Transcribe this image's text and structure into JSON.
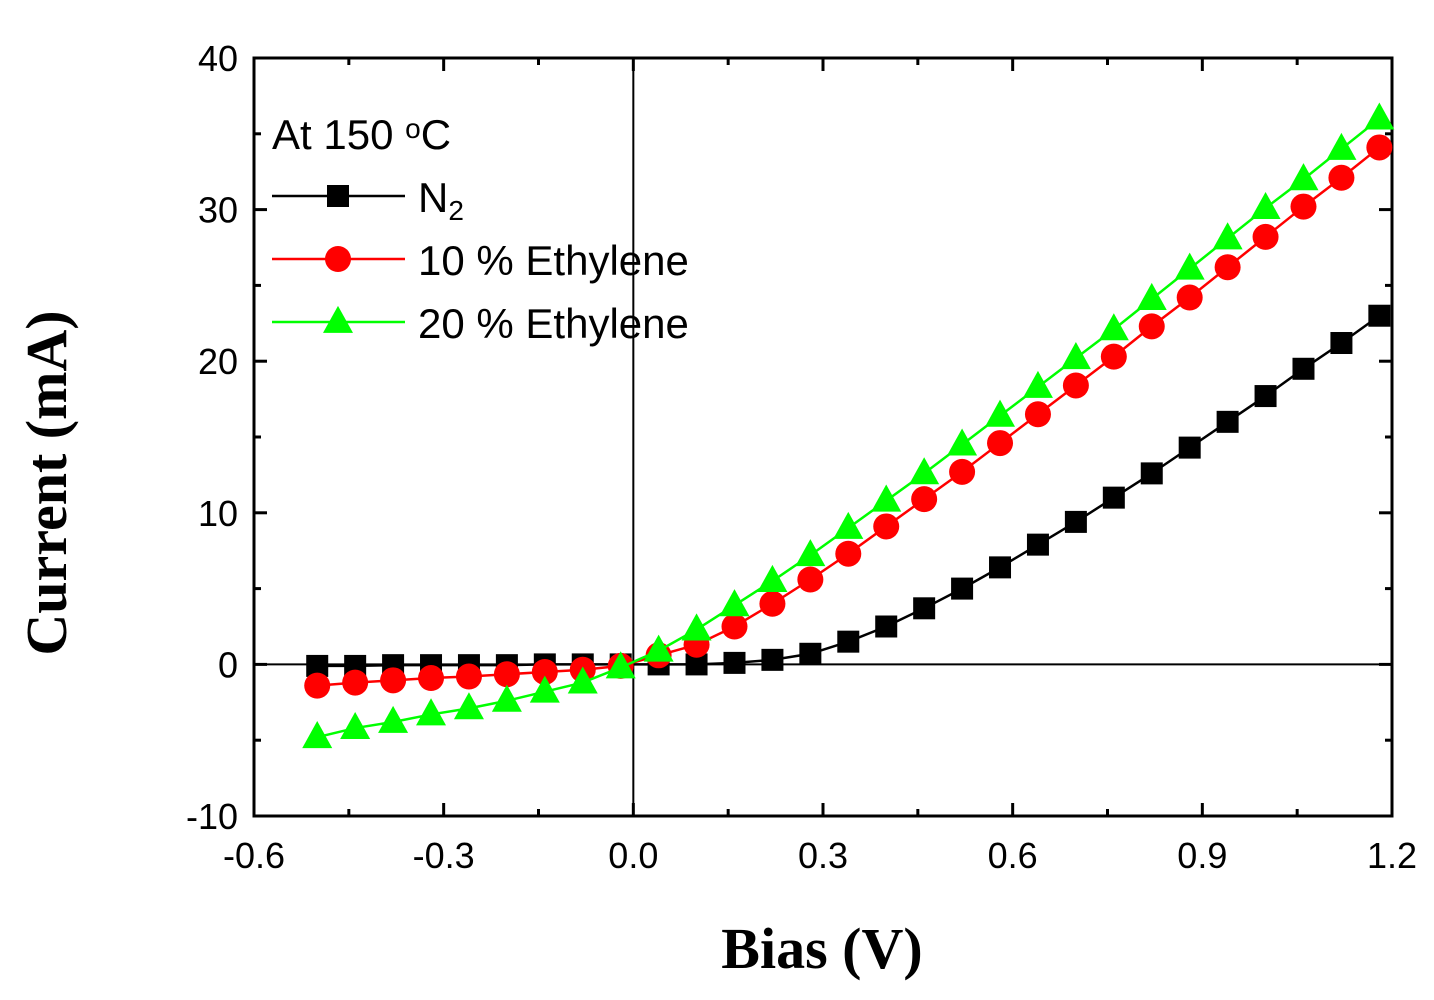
{
  "chart_data": {
    "type": "line",
    "xlabel": "Bias (V)",
    "ylabel": "Current (mA)",
    "xlim": [
      -0.6,
      1.2
    ],
    "ylim": [
      -10,
      40
    ],
    "xticks": [
      "-0.6",
      "-0.3",
      "0.0",
      "0.3",
      "0.6",
      "0.9",
      "1.2"
    ],
    "yticks": [
      "-10",
      "0",
      "10",
      "20",
      "30",
      "40"
    ],
    "grid": false,
    "legend_placement": "top-left",
    "legend_title": {
      "prefix": "At 150 ",
      "sup": "o",
      "suffix": "C"
    },
    "x": [
      -0.5,
      -0.44,
      -0.38,
      -0.32,
      -0.26,
      -0.2,
      -0.14,
      -0.08,
      -0.02,
      0.04,
      0.1,
      0.16,
      0.22,
      0.28,
      0.34,
      0.4,
      0.46,
      0.52,
      0.58,
      0.64,
      0.7,
      0.76,
      0.82,
      0.88,
      0.94,
      1.0,
      1.06,
      1.12,
      1.18
    ],
    "series": [
      {
        "name_main": "N",
        "name_sub": "2",
        "color": "#000000",
        "marker": "square",
        "values": [
          -0.1,
          -0.1,
          -0.05,
          -0.05,
          -0.05,
          -0.05,
          0,
          0,
          0,
          0,
          0,
          0.1,
          0.3,
          0.7,
          1.5,
          2.5,
          3.7,
          5.0,
          6.4,
          7.9,
          9.4,
          11.0,
          12.6,
          14.3,
          16.0,
          17.7,
          19.5,
          21.2,
          23.0
        ]
      },
      {
        "name": "10 % Ethylene",
        "color": "#ff0000",
        "marker": "circle",
        "values": [
          -1.4,
          -1.2,
          -1.05,
          -0.9,
          -0.8,
          -0.65,
          -0.5,
          -0.35,
          -0.1,
          0.6,
          1.3,
          2.5,
          4.0,
          5.6,
          7.3,
          9.1,
          10.9,
          12.7,
          14.6,
          16.5,
          18.4,
          20.3,
          22.3,
          24.2,
          26.2,
          28.2,
          30.2,
          32.1,
          34.1
        ]
      },
      {
        "name": "20 % Ethylene",
        "color": "#00ff00",
        "marker": "triangle",
        "values": [
          -4.8,
          -4.2,
          -3.8,
          -3.3,
          -2.9,
          -2.4,
          -1.8,
          -1.2,
          -0.2,
          0.9,
          2.3,
          3.9,
          5.5,
          7.2,
          9.0,
          10.8,
          12.6,
          14.5,
          16.4,
          18.3,
          20.2,
          22.1,
          24.1,
          26.1,
          28.1,
          30.1,
          32.0,
          34.0,
          36.0
        ]
      }
    ]
  }
}
